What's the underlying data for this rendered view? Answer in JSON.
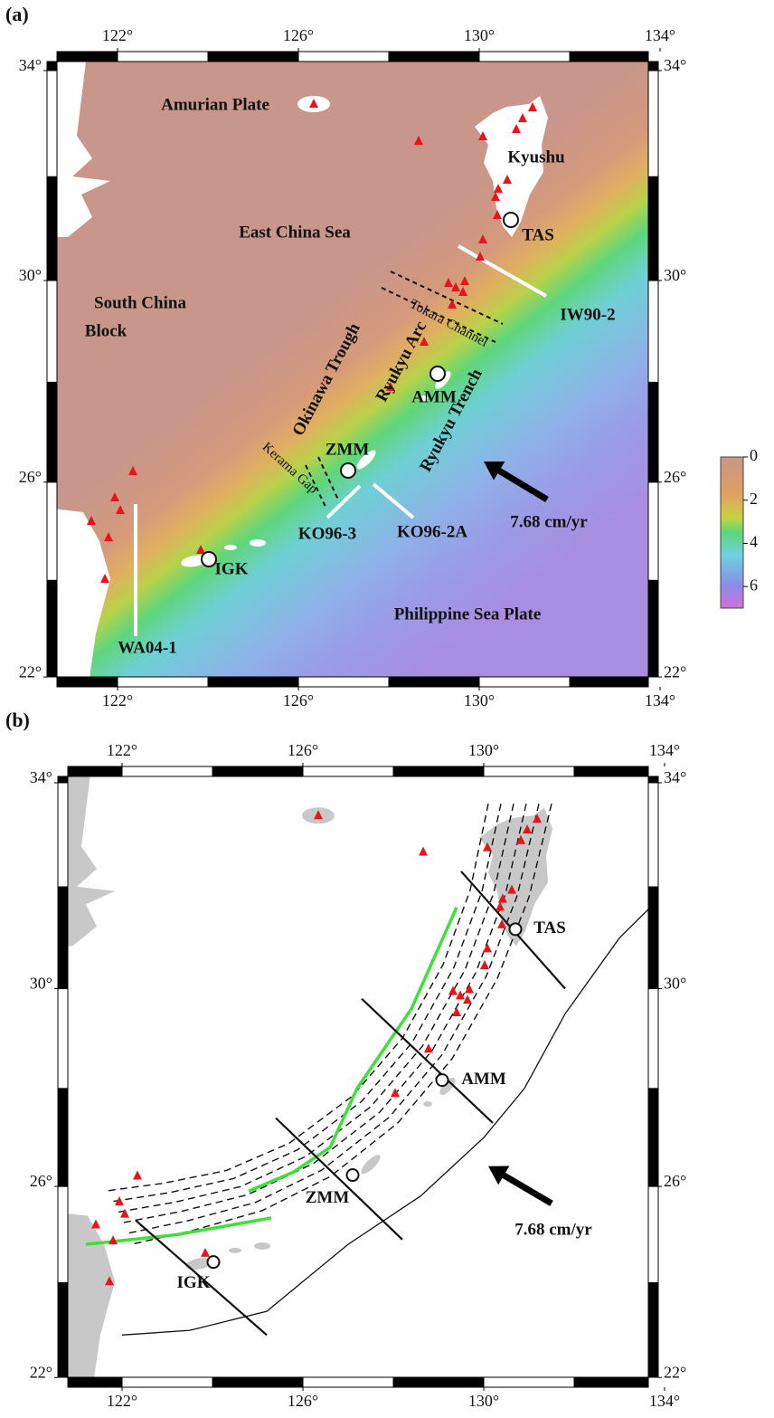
{
  "panels": [
    {
      "label": "(a)",
      "xticks": [
        {
          "value": 122,
          "label": "122°"
        },
        {
          "value": 126,
          "label": "126°"
        },
        {
          "value": 130,
          "label": "130°"
        },
        {
          "value": 134,
          "label": "134°"
        }
      ],
      "yticks": [
        {
          "value": 34,
          "label": "34°"
        },
        {
          "value": 30,
          "label": "30°"
        },
        {
          "value": 26,
          "label": "26°"
        },
        {
          "value": 22,
          "label": "22°"
        }
      ],
      "texts": [
        "Amurian Plate",
        "Kyushu",
        "East China Sea",
        "TAS",
        "South China",
        "Block",
        "IW90-2",
        "Tokara Channel",
        "Okinawa Trough",
        "Ryukyu Arc",
        "AMM",
        "Ryukyu Trench",
        "ZMM",
        "Kerama Gap",
        "KO96-3",
        "KO96-2A",
        "7.68 cm/yr",
        "IGK",
        "Philippine Sea Plate",
        "WA04-1"
      ],
      "colorbar_ticks": [
        0,
        2,
        4,
        6
      ]
    },
    {
      "label": "(b)",
      "xticks": [
        {
          "value": 122,
          "label": "122°"
        },
        {
          "value": 126,
          "label": "126°"
        },
        {
          "value": 130,
          "label": "130°"
        },
        {
          "value": 134,
          "label": "134°"
        }
      ],
      "yticks": [
        {
          "value": 34,
          "label": "34°"
        },
        {
          "value": 30,
          "label": "30°"
        },
        {
          "value": 26,
          "label": "26°"
        },
        {
          "value": 22,
          "label": "22°"
        }
      ],
      "texts": [
        "TAS",
        "AMM",
        "ZMM",
        "IGK",
        "7.68 cm/yr"
      ]
    }
  ]
}
